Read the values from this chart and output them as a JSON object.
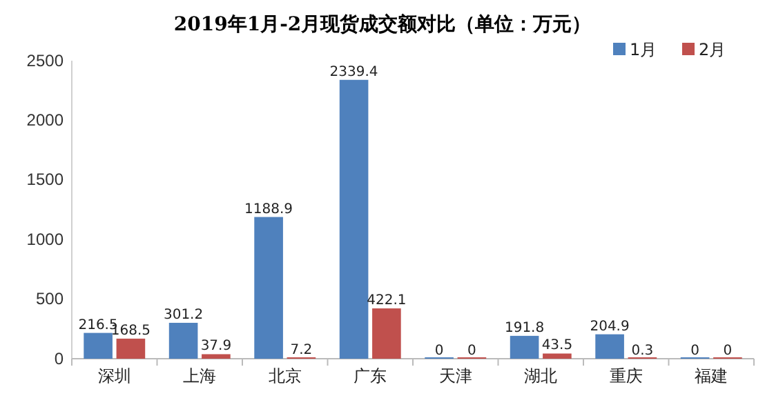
{
  "chart_data": {
    "type": "bar",
    "title": "2019年1月-2月现货成交额对比（单位：万元）",
    "categories": [
      "深圳",
      "上海",
      "北京",
      "广东",
      "天津",
      "湖北",
      "重庆",
      "福建"
    ],
    "series": [
      {
        "name": "1月",
        "color": "#4f81bd",
        "values": [
          216.5,
          301.2,
          1188.9,
          2339.4,
          0,
          191.8,
          204.9,
          0
        ]
      },
      {
        "name": "2月",
        "color": "#c0504d",
        "values": [
          168.5,
          37.9,
          7.2,
          422.1,
          0,
          43.5,
          0.3,
          0
        ]
      }
    ],
    "ylim": [
      0,
      2500
    ],
    "yticks": [
      0,
      500,
      1000,
      1500,
      2000,
      2500
    ],
    "data_labels": true,
    "legend": "top right"
  }
}
